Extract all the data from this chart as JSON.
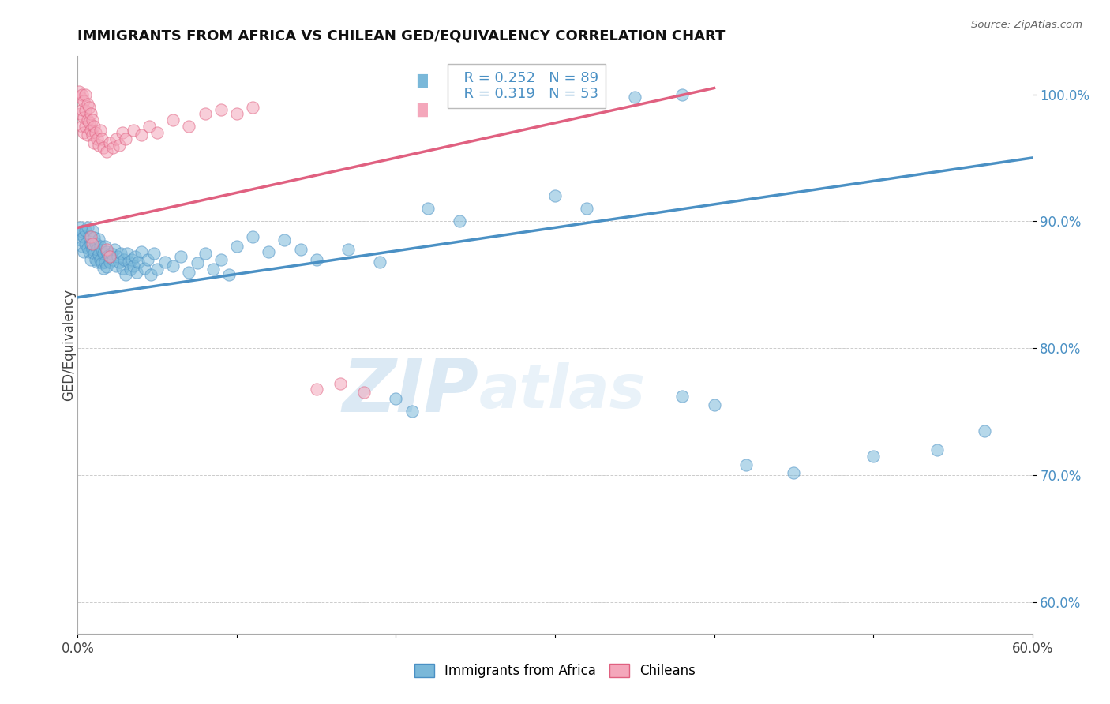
{
  "title": "IMMIGRANTS FROM AFRICA VS CHILEAN GED/EQUIVALENCY CORRELATION CHART",
  "source": "Source: ZipAtlas.com",
  "ylabel": "GED/Equivalency",
  "ytick_labels": [
    "60.0%",
    "70.0%",
    "80.0%",
    "90.0%",
    "100.0%"
  ],
  "ytick_values": [
    0.6,
    0.7,
    0.8,
    0.9,
    1.0
  ],
  "xmin": 0.0,
  "xmax": 0.6,
  "ymin": 0.575,
  "ymax": 1.03,
  "legend_blue_label": "Immigrants from Africa",
  "legend_pink_label": "Chileans",
  "R_blue": "0.252",
  "N_blue": "89",
  "R_pink": "0.319",
  "N_pink": "53",
  "watermark_zip": "ZIP",
  "watermark_atlas": "atlas",
  "blue_color": "#7ab8d9",
  "pink_color": "#f4a7bb",
  "line_blue": "#4a90c4",
  "line_pink": "#e06080",
  "blue_line_x": [
    0.0,
    0.6
  ],
  "blue_line_y": [
    0.84,
    0.95
  ],
  "pink_line_x": [
    0.0,
    0.4
  ],
  "pink_line_y": [
    0.895,
    1.005
  ],
  "blue_scatter": [
    [
      0.001,
      0.89
    ],
    [
      0.002,
      0.895
    ],
    [
      0.002,
      0.885
    ],
    [
      0.003,
      0.892
    ],
    [
      0.003,
      0.88
    ],
    [
      0.004,
      0.888
    ],
    [
      0.004,
      0.876
    ],
    [
      0.005,
      0.893
    ],
    [
      0.005,
      0.882
    ],
    [
      0.006,
      0.879
    ],
    [
      0.006,
      0.895
    ],
    [
      0.007,
      0.888
    ],
    [
      0.007,
      0.876
    ],
    [
      0.008,
      0.882
    ],
    [
      0.008,
      0.87
    ],
    [
      0.009,
      0.893
    ],
    [
      0.009,
      0.878
    ],
    [
      0.01,
      0.887
    ],
    [
      0.01,
      0.875
    ],
    [
      0.011,
      0.883
    ],
    [
      0.011,
      0.87
    ],
    [
      0.012,
      0.878
    ],
    [
      0.012,
      0.868
    ],
    [
      0.013,
      0.886
    ],
    [
      0.013,
      0.874
    ],
    [
      0.014,
      0.88
    ],
    [
      0.014,
      0.87
    ],
    [
      0.015,
      0.877
    ],
    [
      0.015,
      0.867
    ],
    [
      0.016,
      0.875
    ],
    [
      0.016,
      0.863
    ],
    [
      0.017,
      0.88
    ],
    [
      0.017,
      0.868
    ],
    [
      0.018,
      0.876
    ],
    [
      0.018,
      0.864
    ],
    [
      0.019,
      0.873
    ],
    [
      0.02,
      0.868
    ],
    [
      0.021,
      0.875
    ],
    [
      0.022,
      0.87
    ],
    [
      0.023,
      0.878
    ],
    [
      0.024,
      0.865
    ],
    [
      0.025,
      0.872
    ],
    [
      0.026,
      0.868
    ],
    [
      0.027,
      0.875
    ],
    [
      0.028,
      0.863
    ],
    [
      0.029,
      0.87
    ],
    [
      0.03,
      0.858
    ],
    [
      0.031,
      0.875
    ],
    [
      0.032,
      0.868
    ],
    [
      0.033,
      0.862
    ],
    [
      0.034,
      0.87
    ],
    [
      0.035,
      0.865
    ],
    [
      0.036,
      0.872
    ],
    [
      0.037,
      0.86
    ],
    [
      0.038,
      0.868
    ],
    [
      0.04,
      0.876
    ],
    [
      0.042,
      0.863
    ],
    [
      0.044,
      0.87
    ],
    [
      0.046,
      0.858
    ],
    [
      0.048,
      0.875
    ],
    [
      0.05,
      0.862
    ],
    [
      0.055,
      0.868
    ],
    [
      0.06,
      0.865
    ],
    [
      0.065,
      0.872
    ],
    [
      0.07,
      0.86
    ],
    [
      0.075,
      0.867
    ],
    [
      0.08,
      0.875
    ],
    [
      0.085,
      0.862
    ],
    [
      0.09,
      0.87
    ],
    [
      0.095,
      0.858
    ],
    [
      0.1,
      0.88
    ],
    [
      0.11,
      0.888
    ],
    [
      0.12,
      0.876
    ],
    [
      0.13,
      0.885
    ],
    [
      0.14,
      0.878
    ],
    [
      0.15,
      0.87
    ],
    [
      0.17,
      0.878
    ],
    [
      0.19,
      0.868
    ],
    [
      0.22,
      0.91
    ],
    [
      0.24,
      0.9
    ],
    [
      0.3,
      0.92
    ],
    [
      0.32,
      0.91
    ],
    [
      0.35,
      0.998
    ],
    [
      0.38,
      1.0
    ],
    [
      0.2,
      0.76
    ],
    [
      0.21,
      0.75
    ],
    [
      0.38,
      0.762
    ],
    [
      0.4,
      0.755
    ],
    [
      0.42,
      0.708
    ],
    [
      0.45,
      0.702
    ],
    [
      0.5,
      0.715
    ],
    [
      0.54,
      0.72
    ],
    [
      0.57,
      0.735
    ]
  ],
  "pink_scatter": [
    [
      0.001,
      1.002
    ],
    [
      0.002,
      0.998
    ],
    [
      0.002,
      0.985
    ],
    [
      0.003,
      1.0
    ],
    [
      0.003,
      0.988
    ],
    [
      0.003,
      0.975
    ],
    [
      0.004,
      0.995
    ],
    [
      0.004,
      0.982
    ],
    [
      0.004,
      0.97
    ],
    [
      0.005,
      1.0
    ],
    [
      0.005,
      0.987
    ],
    [
      0.005,
      0.975
    ],
    [
      0.006,
      0.992
    ],
    [
      0.006,
      0.98
    ],
    [
      0.006,
      0.968
    ],
    [
      0.007,
      0.99
    ],
    [
      0.007,
      0.978
    ],
    [
      0.008,
      0.985
    ],
    [
      0.008,
      0.972
    ],
    [
      0.009,
      0.98
    ],
    [
      0.009,
      0.968
    ],
    [
      0.01,
      0.975
    ],
    [
      0.01,
      0.962
    ],
    [
      0.011,
      0.97
    ],
    [
      0.012,
      0.965
    ],
    [
      0.013,
      0.96
    ],
    [
      0.014,
      0.972
    ],
    [
      0.015,
      0.965
    ],
    [
      0.016,
      0.958
    ],
    [
      0.018,
      0.955
    ],
    [
      0.02,
      0.962
    ],
    [
      0.022,
      0.958
    ],
    [
      0.024,
      0.965
    ],
    [
      0.026,
      0.96
    ],
    [
      0.028,
      0.97
    ],
    [
      0.03,
      0.965
    ],
    [
      0.035,
      0.972
    ],
    [
      0.04,
      0.968
    ],
    [
      0.045,
      0.975
    ],
    [
      0.05,
      0.97
    ],
    [
      0.06,
      0.98
    ],
    [
      0.07,
      0.975
    ],
    [
      0.08,
      0.985
    ],
    [
      0.09,
      0.988
    ],
    [
      0.1,
      0.985
    ],
    [
      0.11,
      0.99
    ],
    [
      0.008,
      0.888
    ],
    [
      0.009,
      0.882
    ],
    [
      0.018,
      0.878
    ],
    [
      0.02,
      0.872
    ],
    [
      0.15,
      0.768
    ],
    [
      0.165,
      0.772
    ],
    [
      0.18,
      0.765
    ]
  ]
}
